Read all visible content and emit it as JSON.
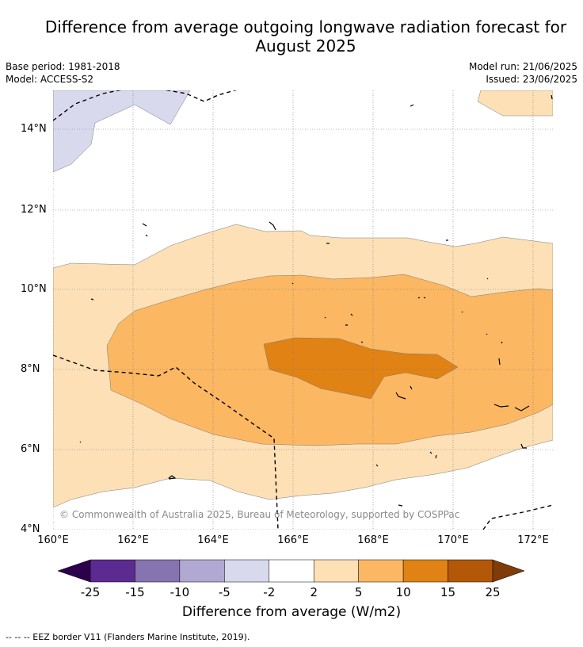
{
  "title_line1": "Difference from average outgoing longwave radiation forecast for",
  "title_line2": "August 2025",
  "base_period": "Base period: 1981-2018",
  "model": "Model: ACCESS-S2",
  "model_run": "Model run: 21/06/2025",
  "issued": "Issued: 23/06/2025",
  "credit": "© Commonwealth of Australia 2025, Bureau of Meteorology, supported by COSPPac",
  "footer": "--  --  -- EEZ border V11 (Flanders Marine Institute, 2019).",
  "lat_labels": [
    "14°N",
    "12°N",
    "10°N",
    "8°N",
    "6°N",
    "4°N"
  ],
  "lon_labels": [
    "160°E",
    "162°E",
    "164°E",
    "166°E",
    "168°E",
    "170°E",
    "172°E"
  ],
  "colorbar": {
    "title": "Difference from average (W/m2)",
    "ticks": [
      "-25",
      "-15",
      "-10",
      "-5",
      "-2",
      "2",
      "5",
      "10",
      "15",
      "25"
    ],
    "colors": [
      "#2d004b",
      "#5c2b91",
      "#8574b0",
      "#b1a8d3",
      "#d8d9ec",
      "#ffffff",
      "#fde0b6",
      "#fbb762",
      "#e08214",
      "#b35806",
      "#7f3b08"
    ]
  }
}
